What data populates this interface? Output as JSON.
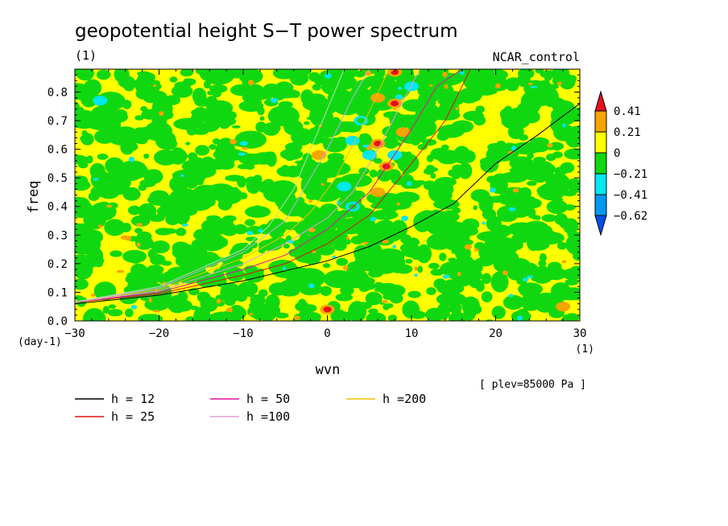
{
  "chart_data": {
    "type": "heatmap",
    "title": "geopotential height S−T power spectrum",
    "subtitle_left": "(1)",
    "subtitle_right": "NCAR_control",
    "xlabel": "wvn",
    "ylabel": "freq",
    "x_unit": "(1)",
    "y_unit": "(day-1)",
    "xlim": [
      -30,
      30
    ],
    "ylim": [
      0,
      0.88
    ],
    "x_ticks": [
      -30,
      -20,
      -10,
      0,
      10,
      20,
      30
    ],
    "x_tick_labels": [
      "−30",
      "−20",
      "−10",
      "0",
      "10",
      "20",
      "30"
    ],
    "y_ticks": [
      0,
      0.1,
      0.2,
      0.3,
      0.4,
      0.5,
      0.6,
      0.7,
      0.8
    ],
    "y_tick_labels": [
      "0.0",
      "0.1",
      "0.2",
      "0.3",
      "0.4",
      "0.5",
      "0.6",
      "0.7",
      "0.8"
    ],
    "annotation": "[ plev=85000 Pa ]",
    "colorbar": {
      "levels": [
        0.41,
        0.21,
        0,
        -0.21,
        -0.41,
        -0.62
      ],
      "level_labels": [
        "0.41",
        "0.21",
        "0",
        "−0.21",
        "−0.41",
        "−0.62"
      ],
      "colors": [
        "#e8101a",
        "#f5a500",
        "#ffff00",
        "#10d810",
        "#00e8f0",
        "#0098f0",
        "#0050e8"
      ]
    },
    "curves": [
      {
        "name": "h = 12",
        "color": "#000000",
        "points": [
          [
            -30,
            0.06
          ],
          [
            -20,
            0.09
          ],
          [
            -10,
            0.14
          ],
          [
            0,
            0.21
          ],
          [
            5,
            0.26
          ],
          [
            10,
            0.33
          ],
          [
            15,
            0.41
          ],
          [
            20,
            0.55
          ],
          [
            25,
            0.65
          ],
          [
            30,
            0.76
          ]
        ]
      },
      {
        "name": "h = 25",
        "color": "#e01010",
        "points": [
          [
            -30,
            0.065
          ],
          [
            -20,
            0.095
          ],
          [
            -10,
            0.16
          ],
          [
            -5,
            0.2
          ],
          [
            0,
            0.27
          ],
          [
            5,
            0.37
          ],
          [
            10,
            0.55
          ],
          [
            14,
            0.7
          ],
          [
            17,
            0.88
          ]
        ]
      },
      {
        "name": "h = 50",
        "color": "#e010a0",
        "points": [
          [
            -30,
            0.065
          ],
          [
            -20,
            0.1
          ],
          [
            -10,
            0.18
          ],
          [
            -5,
            0.23
          ],
          [
            0,
            0.32
          ],
          [
            5,
            0.45
          ],
          [
            10,
            0.67
          ],
          [
            13,
            0.82
          ],
          [
            16,
            0.88
          ]
        ]
      },
      {
        "name": "h =100",
        "color": "#e0a0d8",
        "points": [
          [
            -30,
            0.066
          ],
          [
            -20,
            0.105
          ],
          [
            -10,
            0.2
          ],
          [
            -5,
            0.27
          ],
          [
            0,
            0.36
          ],
          [
            3,
            0.45
          ],
          [
            6,
            0.6
          ],
          [
            9,
            0.77
          ],
          [
            11,
            0.88
          ]
        ]
      },
      {
        "name": "h =200",
        "color": "#f0c000",
        "points": [
          [
            -30,
            0.067
          ],
          [
            -20,
            0.11
          ],
          [
            -10,
            0.22
          ],
          [
            -5,
            0.3
          ],
          [
            -2,
            0.38
          ],
          [
            1,
            0.5
          ],
          [
            4,
            0.67
          ],
          [
            7,
            0.86
          ],
          [
            8,
            0.88
          ]
        ]
      },
      {
        "name": "",
        "color": "#c8a8f0",
        "points": [
          [
            -30,
            0.066
          ],
          [
            -20,
            0.115
          ],
          [
            -10,
            0.24
          ],
          [
            -5,
            0.35
          ],
          [
            -3,
            0.45
          ],
          [
            0,
            0.6
          ],
          [
            3,
            0.78
          ],
          [
            5,
            0.88
          ]
        ]
      },
      {
        "name": "",
        "color": "#b8e0b8",
        "points": [
          [
            -30,
            0.066
          ],
          [
            -20,
            0.12
          ],
          [
            -10,
            0.25
          ],
          [
            -7,
            0.33
          ],
          [
            -4,
            0.46
          ],
          [
            -2,
            0.6
          ],
          [
            0,
            0.74
          ],
          [
            2,
            0.88
          ]
        ]
      }
    ],
    "hotspots": [
      {
        "x": 6,
        "y": 0.62,
        "v": 0.41
      },
      {
        "x": 8,
        "y": 0.76,
        "v": 0.41
      },
      {
        "x": 7,
        "y": 0.54,
        "v": 0.41
      },
      {
        "x": 8,
        "y": 0.87,
        "v": 0.41
      },
      {
        "x": 5,
        "y": 0.58,
        "v": -0.41
      },
      {
        "x": 8,
        "y": 0.58,
        "v": -0.41
      },
      {
        "x": 2,
        "y": 0.47,
        "v": -0.41
      },
      {
        "x": 10,
        "y": 0.82,
        "v": -0.41
      },
      {
        "x": 6,
        "y": 0.78,
        "v": 0.21
      },
      {
        "x": 0,
        "y": 0.04,
        "v": 0.41
      },
      {
        "x": 28,
        "y": 0.05,
        "v": 0.21
      },
      {
        "x": -1,
        "y": 0.58,
        "v": 0.21
      },
      {
        "x": 4,
        "y": 0.7,
        "v": -0.21
      },
      {
        "x": 6,
        "y": 0.45,
        "v": 0.21
      },
      {
        "x": 3,
        "y": 0.4,
        "v": -0.21
      },
      {
        "x": 9,
        "y": 0.66,
        "v": 0.21
      },
      {
        "x": -27,
        "y": 0.77,
        "v": -0.41
      },
      {
        "x": 3,
        "y": 0.63,
        "v": -0.41
      }
    ]
  }
}
